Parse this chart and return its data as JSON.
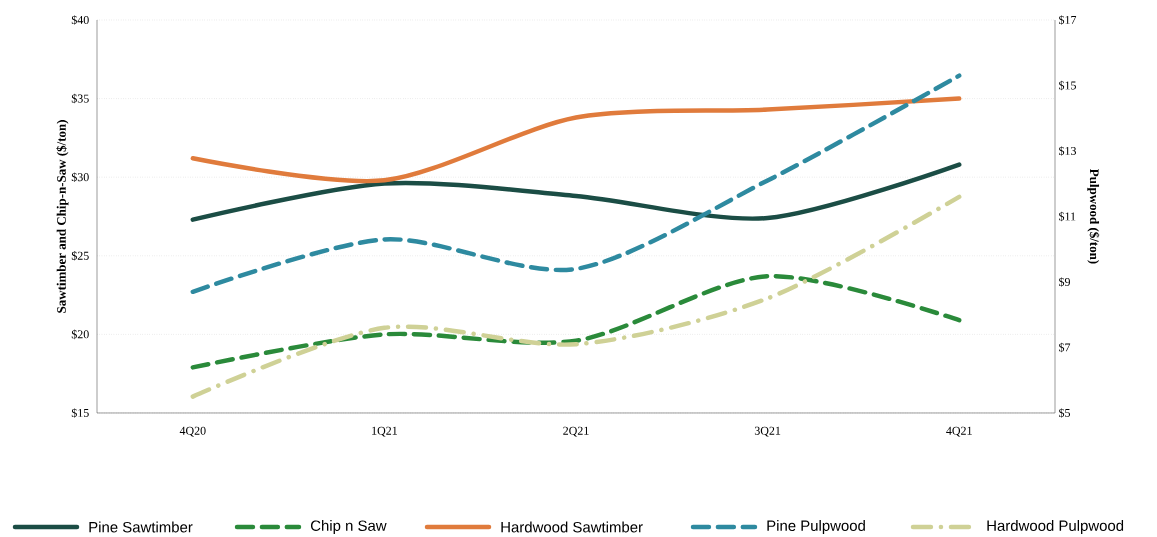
{
  "chart_data": {
    "type": "line",
    "categories": [
      "4Q20",
      "1Q21",
      "2Q21",
      "3Q21",
      "4Q21"
    ],
    "ylabel": "Sawtimber and Chip-n-Saw ($/ton)",
    "y2label": "Pulpwood ($/ton)",
    "ylim": [
      15,
      40
    ],
    "yticks": [
      {
        "value": 15,
        "label": "$15"
      },
      {
        "value": 20,
        "label": "$20"
      },
      {
        "value": 25,
        "label": "$25"
      },
      {
        "value": 30,
        "label": "$30"
      },
      {
        "value": 35,
        "label": "$35"
      },
      {
        "value": 40,
        "label": "$40"
      }
    ],
    "y2lim": [
      5,
      17
    ],
    "y2ticks": [
      {
        "value": 5,
        "label": "$5"
      },
      {
        "value": 7,
        "label": "$7"
      },
      {
        "value": 9,
        "label": "$9"
      },
      {
        "value": 11,
        "label": "$11"
      },
      {
        "value": 13,
        "label": "$13"
      },
      {
        "value": 15,
        "label": "$15"
      },
      {
        "value": 17,
        "label": "$17"
      }
    ],
    "grid": "y",
    "legend": "bottom",
    "marker": "none",
    "series": [
      {
        "name": "Pine Sawtimber",
        "color": "#1b4d45",
        "line_style": "solid",
        "values": [
          27.3,
          29.6,
          28.8,
          27.4,
          30.8
        ]
      },
      {
        "name": "Chip n Saw",
        "color": "#2a8a3a",
        "line_style": "dashed",
        "values": [
          17.9,
          20.0,
          19.6,
          23.7,
          20.9
        ]
      },
      {
        "name": "Hardwood Sawtimber",
        "color": "#e07b3c",
        "line_style": "solid",
        "values": [
          31.2,
          29.8,
          33.8,
          34.3,
          35.0
        ]
      },
      {
        "name": "Pine Pulpwood",
        "color": "#2e8aa0",
        "line_style": "dashed",
        "axis": "y2",
        "values": [
          8.7,
          10.3,
          9.4,
          12.1,
          15.3
        ]
      },
      {
        "name": "Hardwood Pulpwood",
        "color": "#cfd196",
        "line_style": "dashdot",
        "axis": "y2",
        "values": [
          5.5,
          7.6,
          7.1,
          8.5,
          11.6
        ]
      }
    ]
  }
}
